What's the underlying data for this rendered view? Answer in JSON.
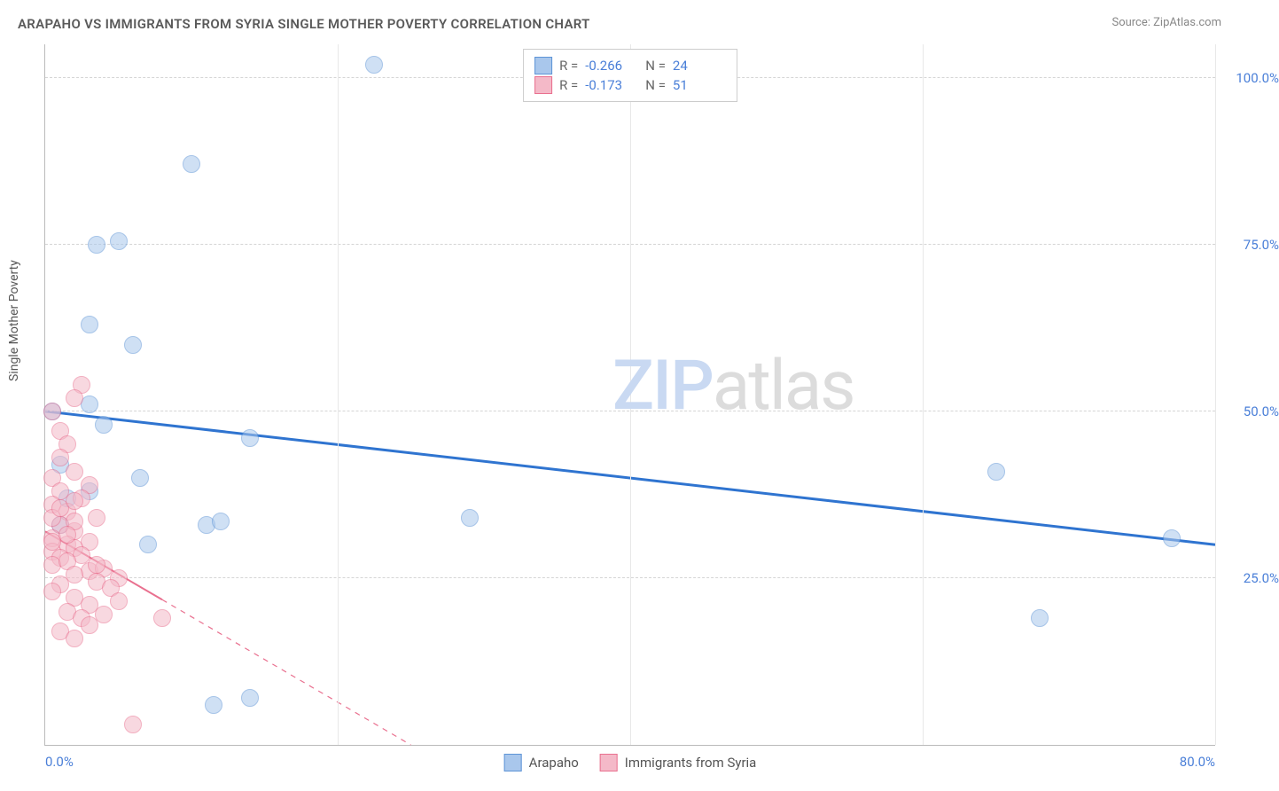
{
  "title": "ARAPAHO VS IMMIGRANTS FROM SYRIA SINGLE MOTHER POVERTY CORRELATION CHART",
  "source": "Source: ZipAtlas.com",
  "ylabel": "Single Mother Poverty",
  "chart": {
    "type": "scatter",
    "xlim": [
      0,
      80
    ],
    "ylim": [
      0,
      105
    ],
    "yticks": [
      {
        "v": 25,
        "l": "25.0%"
      },
      {
        "v": 50,
        "l": "50.0%"
      },
      {
        "v": 75,
        "l": "75.0%"
      },
      {
        "v": 100,
        "l": "100.0%"
      }
    ],
    "xticks": [
      {
        "v": 0,
        "l": "0.0%",
        "align": "left"
      },
      {
        "v": 80,
        "l": "80.0%",
        "align": "right"
      }
    ],
    "vgrids": [
      20,
      40,
      60,
      80
    ],
    "grid_color": "#d5d5d5",
    "background_color": "#ffffff",
    "axis_color": "#bbbbbb",
    "tick_color": "#4a7fd8",
    "marker_radius": 9,
    "marker_opacity": 0.55,
    "series": [
      {
        "name": "Arapaho",
        "color_fill": "#a9c7ec",
        "color_stroke": "#5e94d6",
        "trend_color": "#2f74d0",
        "trend_width": 3,
        "trend_dash": "none",
        "R": "-0.266",
        "N": "24",
        "trend": {
          "x1": 0,
          "y1": 50,
          "x2": 80,
          "y2": 30
        },
        "points": [
          {
            "x": 22.5,
            "y": 102
          },
          {
            "x": 10,
            "y": 87
          },
          {
            "x": 3.5,
            "y": 75
          },
          {
            "x": 5,
            "y": 75.5
          },
          {
            "x": 3,
            "y": 63
          },
          {
            "x": 6,
            "y": 60
          },
          {
            "x": 3,
            "y": 51
          },
          {
            "x": 0.5,
            "y": 50
          },
          {
            "x": 4,
            "y": 48
          },
          {
            "x": 1,
            "y": 42
          },
          {
            "x": 14,
            "y": 46
          },
          {
            "x": 6.5,
            "y": 40
          },
          {
            "x": 65,
            "y": 41
          },
          {
            "x": 1.5,
            "y": 37
          },
          {
            "x": 11,
            "y": 33
          },
          {
            "x": 12,
            "y": 33.5
          },
          {
            "x": 29,
            "y": 34
          },
          {
            "x": 7,
            "y": 30
          },
          {
            "x": 77,
            "y": 31
          },
          {
            "x": 68,
            "y": 19
          },
          {
            "x": 11.5,
            "y": 6
          },
          {
            "x": 14,
            "y": 7
          },
          {
            "x": 1,
            "y": 33
          },
          {
            "x": 3,
            "y": 38
          }
        ]
      },
      {
        "name": "Immigrants from Syria",
        "color_fill": "#f4b9c8",
        "color_stroke": "#e9708f",
        "trend_color": "#e9708f",
        "trend_width": 2,
        "trend_dash": "solid_then_dash",
        "R": "-0.173",
        "N": "51",
        "trend": {
          "x1": 0,
          "y1": 32,
          "x2": 25,
          "y2": 0
        },
        "trend_solid_end": 8,
        "points": [
          {
            "x": 2.5,
            "y": 54
          },
          {
            "x": 2,
            "y": 52
          },
          {
            "x": 0.5,
            "y": 50
          },
          {
            "x": 1,
            "y": 47
          },
          {
            "x": 1.5,
            "y": 45
          },
          {
            "x": 1,
            "y": 43
          },
          {
            "x": 2,
            "y": 41
          },
          {
            "x": 0.5,
            "y": 40
          },
          {
            "x": 3,
            "y": 39
          },
          {
            "x": 1,
            "y": 38
          },
          {
            "x": 2.5,
            "y": 37
          },
          {
            "x": 0.5,
            "y": 36
          },
          {
            "x": 1.5,
            "y": 35
          },
          {
            "x": 3.5,
            "y": 34
          },
          {
            "x": 1,
            "y": 33
          },
          {
            "x": 2,
            "y": 32
          },
          {
            "x": 0.5,
            "y": 31
          },
          {
            "x": 1.5,
            "y": 30
          },
          {
            "x": 3,
            "y": 30.5
          },
          {
            "x": 0.5,
            "y": 29
          },
          {
            "x": 2,
            "y": 29.5
          },
          {
            "x": 1,
            "y": 28
          },
          {
            "x": 2.5,
            "y": 28.5
          },
          {
            "x": 0.5,
            "y": 27
          },
          {
            "x": 1.5,
            "y": 27.5
          },
          {
            "x": 3,
            "y": 26
          },
          {
            "x": 4,
            "y": 26.5
          },
          {
            "x": 5,
            "y": 25
          },
          {
            "x": 2,
            "y": 25.5
          },
          {
            "x": 1,
            "y": 24
          },
          {
            "x": 3.5,
            "y": 24.5
          },
          {
            "x": 0.5,
            "y": 23
          },
          {
            "x": 4.5,
            "y": 23.5
          },
          {
            "x": 2,
            "y": 22
          },
          {
            "x": 3,
            "y": 21
          },
          {
            "x": 5,
            "y": 21.5
          },
          {
            "x": 1.5,
            "y": 20
          },
          {
            "x": 2.5,
            "y": 19
          },
          {
            "x": 4,
            "y": 19.5
          },
          {
            "x": 8,
            "y": 19
          },
          {
            "x": 3,
            "y": 18
          },
          {
            "x": 1,
            "y": 17
          },
          {
            "x": 2,
            "y": 16
          },
          {
            "x": 6,
            "y": 3
          },
          {
            "x": 0.5,
            "y": 34
          },
          {
            "x": 1,
            "y": 35.5
          },
          {
            "x": 2,
            "y": 33.5
          },
          {
            "x": 1.5,
            "y": 31.5
          },
          {
            "x": 0.5,
            "y": 30.5
          },
          {
            "x": 3.5,
            "y": 27
          },
          {
            "x": 2,
            "y": 36.5
          }
        ]
      }
    ]
  },
  "legend_top": {
    "rows": [
      {
        "swatch_fill": "#a9c7ec",
        "swatch_stroke": "#5e94d6",
        "R_label": "R =",
        "R": "-0.266",
        "N_label": "N =",
        "N": "24"
      },
      {
        "swatch_fill": "#f4b9c8",
        "swatch_stroke": "#e9708f",
        "R_label": "R =",
        "R": "-0.173",
        "N_label": "N =",
        "N": "51"
      }
    ]
  },
  "legend_bottom": {
    "items": [
      {
        "swatch_fill": "#a9c7ec",
        "swatch_stroke": "#5e94d6",
        "label": "Arapaho"
      },
      {
        "swatch_fill": "#f4b9c8",
        "swatch_stroke": "#e9708f",
        "label": "Immigrants from Syria"
      }
    ]
  },
  "watermark": {
    "z": "ZIP",
    "rest": "atlas"
  }
}
